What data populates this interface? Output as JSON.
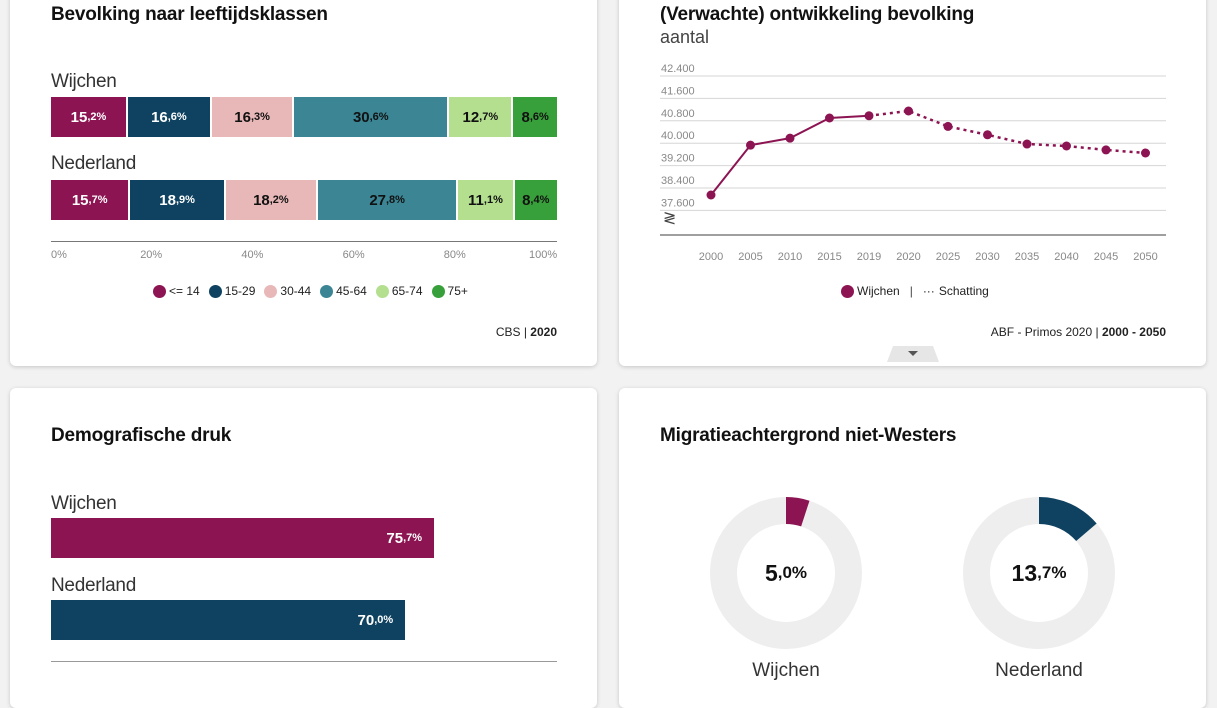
{
  "colors": {
    "age_lt14": "#8c1452",
    "age_15_29": "#0f4260",
    "age_30_44": "#e8b8b8",
    "age_45_64": "#3b8594",
    "age_65_74": "#b3df8f",
    "age_75p": "#38a03a",
    "wijchen": "#8c1452",
    "nederland": "#0f4260",
    "donut_bg": "#eeeeee"
  },
  "age_card": {
    "title": "Bevolking naar leeftijdsklassen",
    "source_prefix": "CBS | ",
    "source_year": "2020"
  },
  "dev_card": {
    "title": "(Verwachte) ontwikkeling bevolking",
    "subtitle": "aantal",
    "source_prefix": "ABF - Primos 2020 | ",
    "source_range": "2000 - 2050",
    "legend_series": "Wijchen",
    "legend_sep": "|",
    "legend_estimate_symbol": "···",
    "legend_estimate": "Schatting",
    "axis_break_symbol": "≷"
  },
  "druk_card": {
    "title": "Demografische druk"
  },
  "mig_card": {
    "title": "Migratieachtergrond niet-Westers"
  },
  "chart_data": [
    {
      "type": "bar",
      "stacked": true,
      "orientation": "horizontal",
      "title": "Bevolking naar leeftijdsklassen",
      "categories": [
        "Wijchen",
        "Nederland"
      ],
      "legend_position": "bottom",
      "series": [
        {
          "name": "<= 14",
          "values": [
            15.2,
            15.7
          ],
          "labels": [
            [
              "15",
              ",2%"
            ],
            [
              "15",
              ",7%"
            ]
          ],
          "text_color": "#ffffff"
        },
        {
          "name": "15-29",
          "values": [
            16.6,
            18.9
          ],
          "labels": [
            [
              "16",
              ",6%"
            ],
            [
              "18",
              ",9%"
            ]
          ],
          "text_color": "#ffffff"
        },
        {
          "name": "30-44",
          "values": [
            16.3,
            18.2
          ],
          "labels": [
            [
              "16",
              ",3%"
            ],
            [
              "18",
              ",2%"
            ]
          ],
          "text_color": "#111111"
        },
        {
          "name": "45-64",
          "values": [
            30.6,
            27.8
          ],
          "labels": [
            [
              "30",
              ",6%"
            ],
            [
              "27",
              ",8%"
            ]
          ],
          "text_color": "#111111"
        },
        {
          "name": "65-74",
          "values": [
            12.7,
            11.1
          ],
          "labels": [
            [
              "12",
              ",7%"
            ],
            [
              "11",
              ",1%"
            ]
          ],
          "text_color": "#111111"
        },
        {
          "name": "75+",
          "values": [
            8.6,
            8.4
          ],
          "labels": [
            [
              "8",
              ",6%"
            ],
            [
              "8",
              ",4%"
            ]
          ],
          "text_color": "#111111"
        }
      ],
      "xticks": [
        "0%",
        "20%",
        "40%",
        "60%",
        "80%",
        "100%"
      ],
      "xlim": [
        0,
        100
      ],
      "source": "CBS | 2020"
    },
    {
      "type": "line",
      "title": "(Verwachte) ontwikkeling bevolking",
      "ylabel": "aantal",
      "x": [
        "2000",
        "2005",
        "2010",
        "2015",
        "2019",
        "2020",
        "2025",
        "2030",
        "2035",
        "2040",
        "2045",
        "2050"
      ],
      "series": [
        {
          "name": "Wijchen",
          "values": [
            38150,
            39930,
            40180,
            40900,
            40980,
            41150,
            40600,
            40300,
            39970,
            39900,
            39760,
            39650
          ],
          "estimate_from_index": 4
        }
      ],
      "yticks": [
        "42.400",
        "41.600",
        "40.800",
        "40.000",
        "39.200",
        "38.400",
        "37.600"
      ],
      "ytick_values": [
        42400,
        41600,
        40800,
        40000,
        39200,
        38400,
        37600
      ],
      "ylim": [
        36800,
        42400
      ],
      "grid": true,
      "legend_position": "bottom",
      "source": "ABF - Primos 2020 | 2000 - 2050"
    },
    {
      "type": "bar",
      "orientation": "horizontal",
      "title": "Demografische druk",
      "categories": [
        "Wijchen",
        "Nederland"
      ],
      "values": [
        75.7,
        70.0
      ],
      "labels": [
        [
          "75",
          ",7%"
        ],
        [
          "70",
          ",0%"
        ]
      ],
      "xlim": [
        0,
        100
      ]
    },
    {
      "type": "pie",
      "donut": true,
      "title": "Migratieachtergrond niet-Westers",
      "categories": [
        "Wijchen",
        "Nederland"
      ],
      "values": [
        5.0,
        13.7
      ],
      "labels": [
        [
          "5",
          ",0%"
        ],
        [
          "13",
          ",7%"
        ]
      ]
    }
  ]
}
